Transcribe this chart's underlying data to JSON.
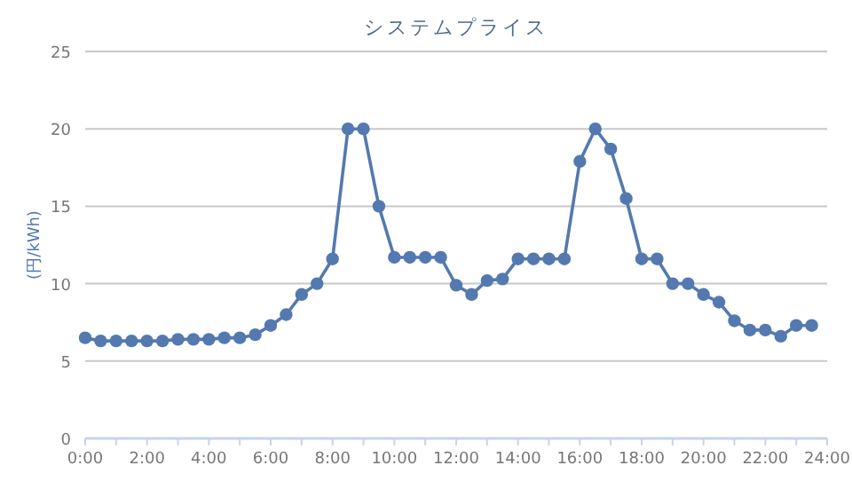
{
  "chart_data": {
    "type": "line",
    "title": "システムプライス",
    "ylabel": "(円/kWh)",
    "x": [
      0,
      0.5,
      1,
      1.5,
      2,
      2.5,
      3,
      3.5,
      4,
      4.5,
      5,
      5.5,
      6,
      6.5,
      7,
      7.5,
      8,
      8.5,
      9,
      9.5,
      10,
      10.5,
      11,
      11.5,
      12,
      12.5,
      13,
      13.5,
      14,
      14.5,
      15,
      15.5,
      16,
      16.5,
      17,
      17.5,
      18,
      18.5,
      19,
      19.5,
      20,
      20.5,
      21,
      21.5,
      22,
      22.5,
      23,
      23.5
    ],
    "series": [
      {
        "color": "#5479b0",
        "values": [
          6.5,
          6.3,
          6.3,
          6.3,
          6.3,
          6.3,
          6.4,
          6.4,
          6.4,
          6.5,
          6.5,
          6.7,
          7.3,
          8.0,
          9.3,
          10.0,
          11.6,
          20.0,
          20.0,
          15.0,
          11.7,
          11.7,
          11.7,
          11.7,
          9.9,
          9.3,
          10.2,
          10.3,
          11.6,
          11.6,
          11.6,
          11.6,
          17.9,
          20.0,
          18.7,
          15.5,
          11.6,
          11.6,
          10.0,
          10.0,
          9.3,
          8.8,
          7.6,
          7.0,
          7.0,
          6.6,
          7.3,
          7.3
        ]
      }
    ],
    "xlim": [
      0,
      24
    ],
    "xticks": [
      {
        "value": 0,
        "label": "0:00"
      },
      {
        "value": 1,
        "label": null
      },
      {
        "value": 2,
        "label": "2:00"
      },
      {
        "value": 3,
        "label": null
      },
      {
        "value": 4,
        "label": "4:00"
      },
      {
        "value": 5,
        "label": null
      },
      {
        "value": 6,
        "label": "6:00"
      },
      {
        "value": 7,
        "label": null
      },
      {
        "value": 8,
        "label": "8:00"
      },
      {
        "value": 9,
        "label": null
      },
      {
        "value": 10,
        "label": "10:00"
      },
      {
        "value": 11,
        "label": null
      },
      {
        "value": 12,
        "label": "12:00"
      },
      {
        "value": 13,
        "label": null
      },
      {
        "value": 14,
        "label": "14:00"
      },
      {
        "value": 15,
        "label": null
      },
      {
        "value": 16,
        "label": "16:00"
      },
      {
        "value": 17,
        "label": null
      },
      {
        "value": 18,
        "label": "18:00"
      },
      {
        "value": 19,
        "label": null
      },
      {
        "value": 20,
        "label": "20:00"
      },
      {
        "value": 21,
        "label": null
      },
      {
        "value": 22,
        "label": "22:00"
      },
      {
        "value": 23,
        "label": null
      },
      {
        "value": 24,
        "label": "24:00"
      }
    ],
    "ylim": [
      0,
      25
    ],
    "yticks": [
      0,
      5,
      10,
      15,
      20,
      25
    ],
    "grid": "y",
    "marker": "circle",
    "line_style": "solid"
  }
}
